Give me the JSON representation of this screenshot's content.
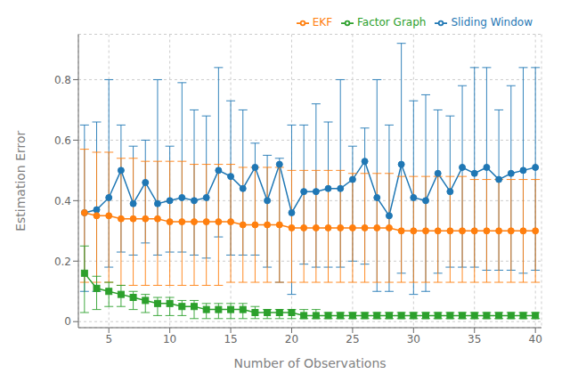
{
  "chart_data": {
    "type": "line",
    "xlabel": "Number of Observations",
    "ylabel": "Estimation Error",
    "x": [
      3,
      4,
      5,
      6,
      7,
      8,
      9,
      10,
      11,
      12,
      13,
      14,
      15,
      16,
      17,
      18,
      19,
      20,
      21,
      22,
      23,
      24,
      25,
      26,
      27,
      28,
      29,
      30,
      31,
      32,
      33,
      34,
      35,
      36,
      37,
      38,
      39,
      40
    ],
    "xlim": [
      2.5,
      40.5
    ],
    "ylim": [
      -0.02,
      0.95
    ],
    "xticks": [
      5,
      10,
      15,
      20,
      25,
      30,
      35,
      40
    ],
    "yticks": [
      0,
      0.2,
      0.4,
      0.6,
      0.8
    ],
    "grid": true,
    "legend": "upper right",
    "series": [
      {
        "name": "Sliding Window",
        "color": "#1f77b4",
        "marker": "circle",
        "line_style": "solid",
        "values": [
          0.36,
          0.37,
          0.41,
          0.5,
          0.39,
          0.46,
          0.39,
          0.4,
          0.41,
          0.4,
          0.41,
          0.5,
          0.48,
          0.44,
          0.51,
          0.4,
          0.52,
          0.36,
          0.43,
          0.43,
          0.44,
          0.44,
          0.47,
          0.53,
          0.41,
          0.35,
          0.52,
          0.41,
          0.4,
          0.49,
          0.43,
          0.51,
          0.49,
          0.51,
          0.47,
          0.49,
          0.5,
          0.51
        ],
        "upper": [
          0.65,
          0.66,
          0.8,
          0.65,
          0.58,
          0.6,
          0.8,
          0.58,
          0.79,
          0.7,
          0.68,
          0.84,
          0.73,
          0.7,
          0.59,
          0.55,
          0.54,
          0.65,
          0.65,
          0.72,
          0.66,
          0.8,
          0.58,
          0.64,
          0.8,
          0.65,
          0.92,
          0.73,
          0.75,
          0.7,
          0.68,
          0.78,
          0.84,
          0.84,
          0.7,
          0.78,
          0.84,
          0.84
        ],
        "lower": [
          0.1,
          0.1,
          0.18,
          0.23,
          0.22,
          0.26,
          0.22,
          0.23,
          0.23,
          0.22,
          0.21,
          0.28,
          0.22,
          0.22,
          0.22,
          0.18,
          0.13,
          0.09,
          0.19,
          0.18,
          0.18,
          0.18,
          0.2,
          0.19,
          0.1,
          0.1,
          0.16,
          0.09,
          0.1,
          0.16,
          0.18,
          0.18,
          0.18,
          0.17,
          0.17,
          0.17,
          0.16,
          0.17
        ]
      },
      {
        "name": "EKF",
        "color": "#ff7f0e",
        "marker": "circle",
        "line_style": "solid",
        "values": [
          0.36,
          0.35,
          0.35,
          0.34,
          0.34,
          0.34,
          0.34,
          0.33,
          0.33,
          0.33,
          0.33,
          0.33,
          0.33,
          0.32,
          0.32,
          0.32,
          0.32,
          0.31,
          0.31,
          0.31,
          0.31,
          0.31,
          0.31,
          0.31,
          0.31,
          0.31,
          0.3,
          0.3,
          0.3,
          0.3,
          0.3,
          0.3,
          0.3,
          0.3,
          0.3,
          0.3,
          0.3,
          0.3
        ],
        "upper": [
          0.57,
          0.56,
          0.56,
          0.54,
          0.54,
          0.53,
          0.53,
          0.53,
          0.53,
          0.52,
          0.52,
          0.52,
          0.52,
          0.51,
          0.51,
          0.51,
          0.51,
          0.5,
          0.5,
          0.5,
          0.5,
          0.5,
          0.49,
          0.49,
          0.49,
          0.49,
          0.48,
          0.48,
          0.48,
          0.48,
          0.48,
          0.48,
          0.47,
          0.47,
          0.47,
          0.47,
          0.47,
          0.47
        ],
        "lower": [
          0.13,
          0.13,
          0.13,
          0.12,
          0.12,
          0.12,
          0.12,
          0.12,
          0.12,
          0.12,
          0.12,
          0.12,
          0.13,
          0.13,
          0.13,
          0.13,
          0.13,
          0.13,
          0.13,
          0.13,
          0.13,
          0.13,
          0.13,
          0.13,
          0.13,
          0.13,
          0.13,
          0.13,
          0.13,
          0.13,
          0.13,
          0.13,
          0.13,
          0.13,
          0.13,
          0.13,
          0.13,
          0.13
        ]
      },
      {
        "name": "Factor Graph",
        "color": "#2ca02c",
        "marker": "square",
        "line_style": "solid",
        "values": [
          0.16,
          0.11,
          0.1,
          0.09,
          0.08,
          0.07,
          0.06,
          0.06,
          0.05,
          0.05,
          0.04,
          0.04,
          0.04,
          0.04,
          0.03,
          0.03,
          0.03,
          0.03,
          0.02,
          0.02,
          0.02,
          0.02,
          0.02,
          0.02,
          0.02,
          0.02,
          0.02,
          0.02,
          0.02,
          0.02,
          0.02,
          0.02,
          0.02,
          0.02,
          0.02,
          0.02,
          0.02,
          0.02
        ],
        "upper": [
          0.25,
          0.15,
          0.13,
          0.12,
          0.1,
          0.09,
          0.08,
          0.08,
          0.07,
          0.07,
          0.06,
          0.06,
          0.06,
          0.06,
          0.05,
          0.04,
          0.04,
          0.04,
          0.04,
          0.04,
          0.03,
          0.03,
          0.03,
          0.03,
          0.03,
          0.03,
          0.03,
          0.03,
          0.03,
          0.03,
          0.03,
          0.03,
          0.03,
          0.03,
          0.03,
          0.03,
          0.03,
          0.03
        ],
        "lower": [
          0.03,
          0.04,
          0.05,
          0.05,
          0.04,
          0.03,
          0.02,
          0.02,
          0.02,
          0.01,
          0.01,
          0.01,
          0.01,
          0.01,
          0.01,
          0.01,
          0.01,
          0.01,
          0.01,
          0.01,
          0.01,
          0.01,
          0.01,
          0.01,
          0.01,
          0.01,
          0.01,
          0.01,
          0.01,
          0.01,
          0.01,
          0.01,
          0.01,
          0.01,
          0.01,
          0.01,
          0.01,
          0.01
        ]
      }
    ]
  }
}
